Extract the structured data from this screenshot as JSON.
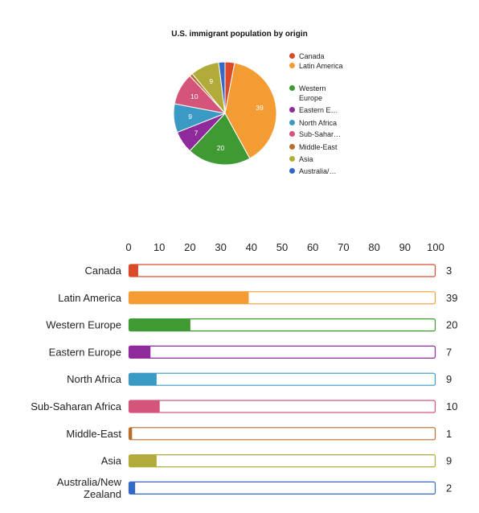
{
  "title": "U.S. immigrant population by origin",
  "colors": {
    "Canada": "#d94a2b",
    "Latin America": "#f39c33",
    "Western Europe": "#3f9a34",
    "Eastern Europe": "#8e2a9b",
    "North Africa": "#3b9ac4",
    "Sub-Saharan Africa": "#d4547a",
    "Middle-East": "#b96e2e",
    "Asia": "#b1ac3a",
    "Australia/New Zealand": "#3569c8"
  },
  "legend_labels": [
    "Canada",
    "Latin America",
    "Western Europe",
    "Eastern E…",
    "North Africa",
    "Sub-Sahar…",
    "Middle-East",
    "Asia",
    "Australia/…"
  ],
  "chart_data": [
    {
      "type": "pie",
      "title": "U.S. immigrant population by origin",
      "categories": [
        "Canada",
        "Latin America",
        "Western Europe",
        "Eastern Europe",
        "North Africa",
        "Sub-Saharan Africa",
        "Middle-East",
        "Asia",
        "Australia/New Zealand"
      ],
      "values": [
        3,
        39,
        20,
        7,
        9,
        10,
        1,
        9,
        2
      ],
      "slice_labels": [
        "",
        "39",
        "20",
        "7",
        "9",
        "10",
        "",
        "9",
        ""
      ],
      "legend_position": "right"
    },
    {
      "type": "bar",
      "orientation": "horizontal",
      "categories": [
        "Canada",
        "Latin America",
        "Western Europe",
        "Eastern Europe",
        "North Africa",
        "Sub-Saharan Africa",
        "Middle-East",
        "Asia",
        "Australia/New Zealand"
      ],
      "category_labels": [
        [
          "Canada"
        ],
        [
          "Latin America"
        ],
        [
          "Western Europe"
        ],
        [
          "Eastern Europe"
        ],
        [
          "North Africa"
        ],
        [
          "Sub-Saharan Africa"
        ],
        [
          "Middle-East"
        ],
        [
          "Asia"
        ],
        [
          "Australia/New",
          "Zealand"
        ]
      ],
      "values": [
        3,
        39,
        20,
        7,
        9,
        10,
        1,
        9,
        2
      ],
      "value_labels": [
        "3",
        "39",
        "20",
        "7",
        "9",
        "10",
        "1",
        "9",
        "2"
      ],
      "xlim": [
        0,
        100
      ],
      "xticks": [
        "0",
        "10",
        "20",
        "30",
        "40",
        "50",
        "60",
        "70",
        "80",
        "90",
        "100"
      ],
      "axis_position": "top"
    }
  ]
}
